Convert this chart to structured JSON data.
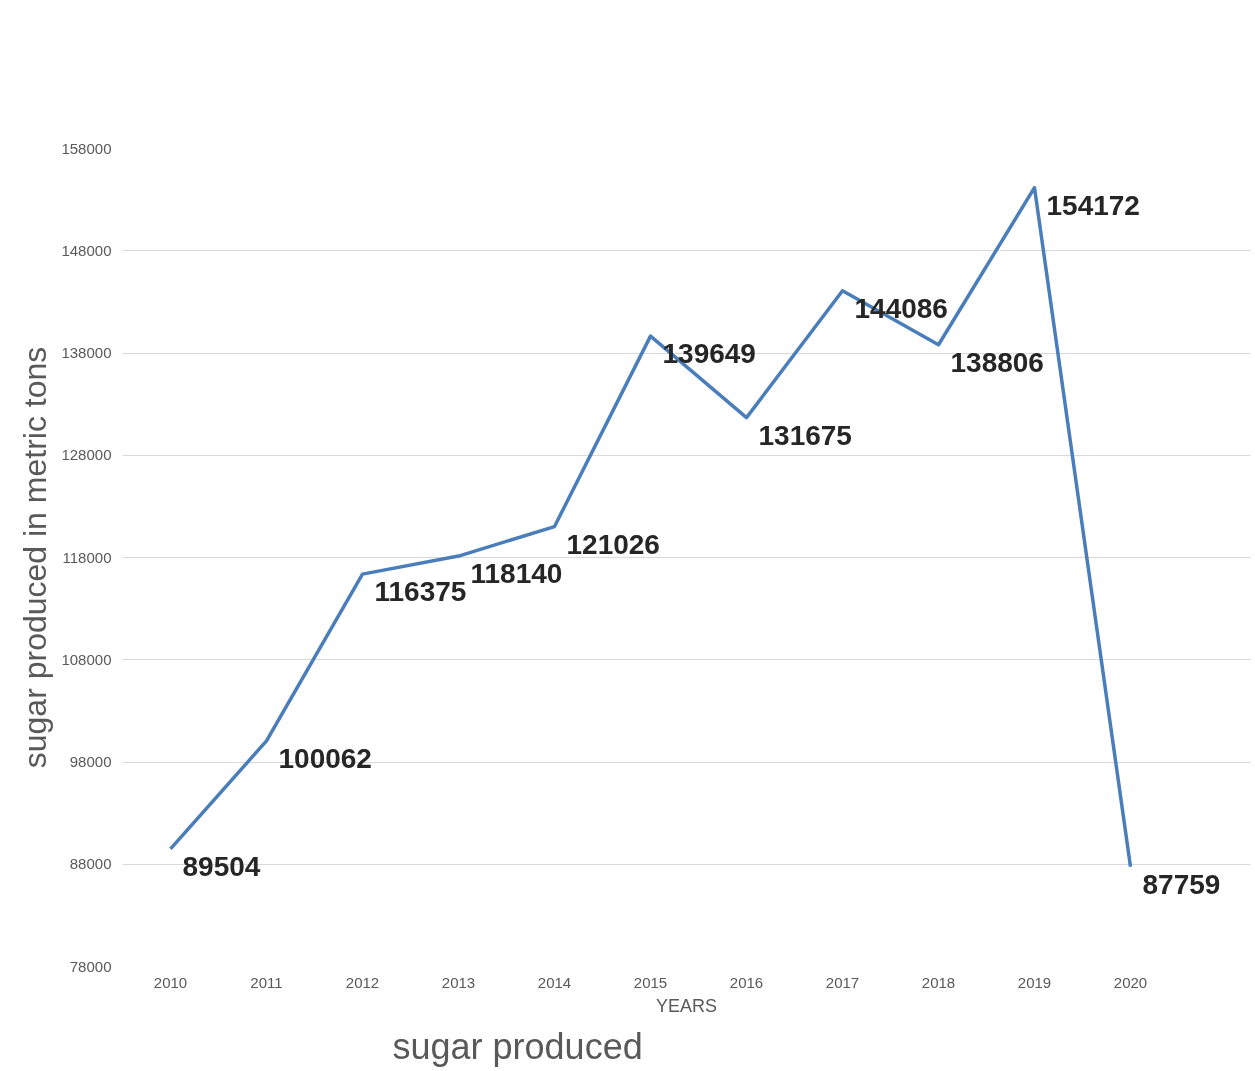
{
  "chart_data": {
    "type": "line",
    "xlabel": "YEARS",
    "ylabel": "sugar produced in metric tons",
    "categories": [
      "2010",
      "2011",
      "2012",
      "2013",
      "2014",
      "2015",
      "2016",
      "2017",
      "2018",
      "2019",
      "2020"
    ],
    "series": [
      {
        "color": "#4a7ebb",
        "values": [
          89504,
          100062,
          116375,
          118140,
          121026,
          139649,
          131675,
          144086,
          138806,
          154172,
          87759
        ]
      }
    ],
    "ylim": [
      78000,
      158000
    ],
    "yticks": [
      78000,
      88000,
      98000,
      108000,
      118000,
      128000,
      138000,
      148000,
      158000
    ],
    "grid": "y",
    "data_labels": true,
    "marker": "none",
    "line_style": "solid",
    "annotations": [
      "sugar produced"
    ]
  }
}
